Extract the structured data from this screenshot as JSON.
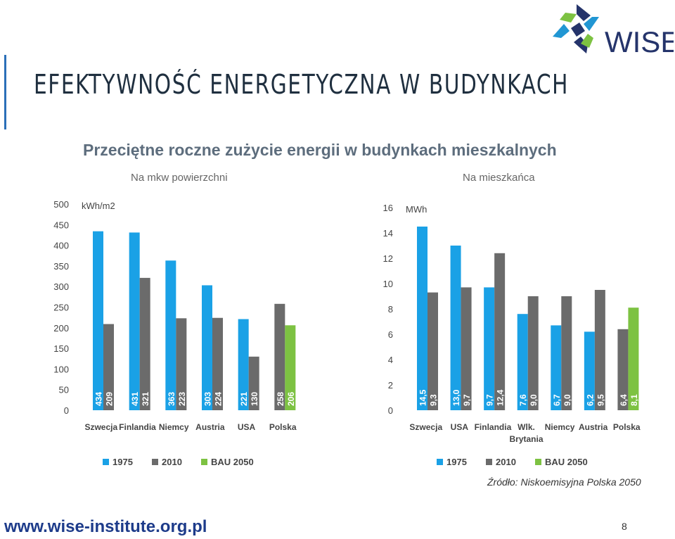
{
  "header": {
    "title": "EFEKTYWNOŚĆ ENERGETYCZNA W BUDYNKACH",
    "logo_text": "WISE"
  },
  "subtitle": "Przeciętne roczne zużycie energii w budynkach mieszkalnych",
  "colors": {
    "s1975": "#1aa1e6",
    "s2010": "#6b6b6b",
    "sBAU": "#7dc242",
    "title": "#1f2f3f",
    "subtitle": "#5d6d7d",
    "url": "#1d3b8a"
  },
  "chart_data": [
    {
      "type": "bar",
      "panel_title": "Na mkw powierzchni",
      "unit": "kWh/m2",
      "ylim": [
        0,
        500
      ],
      "yticks": [
        0,
        50,
        100,
        150,
        200,
        250,
        300,
        350,
        400,
        450,
        500
      ],
      "categories": [
        [
          "Szwecja"
        ],
        [
          "Finlandia"
        ],
        [
          "Niemcy"
        ],
        [
          "Austria"
        ],
        [
          "USA"
        ],
        [
          "Polska"
        ]
      ],
      "series": [
        {
          "name": "1975",
          "values": [
            434,
            431,
            363,
            303,
            221,
            null
          ],
          "labels": [
            "434",
            "431",
            "363",
            "303",
            "221",
            null
          ]
        },
        {
          "name": "2010",
          "values": [
            209,
            321,
            223,
            224,
            130,
            258
          ],
          "labels": [
            "209",
            "321",
            "223",
            "224",
            "130",
            "258"
          ]
        },
        {
          "name": "BAU 2050",
          "values": [
            null,
            null,
            null,
            null,
            null,
            206
          ],
          "labels": [
            null,
            null,
            null,
            null,
            null,
            "206"
          ]
        }
      ],
      "grid": false,
      "legend_position": "bottom"
    },
    {
      "type": "bar",
      "panel_title": "Na mieszkańca",
      "unit": "MWh",
      "ylim": [
        0,
        16
      ],
      "yticks": [
        0,
        2,
        4,
        6,
        8,
        10,
        12,
        14,
        16
      ],
      "categories": [
        [
          "Szwecja"
        ],
        [
          "USA"
        ],
        [
          "Finlandia"
        ],
        [
          "Wlk.",
          "Brytania"
        ],
        [
          "Niemcy"
        ],
        [
          "Austria"
        ],
        [
          "Polska"
        ]
      ],
      "series": [
        {
          "name": "1975",
          "values": [
            14.5,
            13.0,
            9.7,
            7.6,
            6.7,
            6.2,
            null
          ],
          "labels": [
            "14,5",
            "13,0",
            "9,7",
            "7,6",
            "6,7",
            "6,2",
            null
          ]
        },
        {
          "name": "2010",
          "values": [
            9.3,
            9.7,
            12.4,
            9.0,
            9.0,
            9.5,
            6.4
          ],
          "labels": [
            "9,3",
            "9,7",
            "12,4",
            "9,0",
            "9,0",
            "9,5",
            "6,4"
          ]
        },
        {
          "name": "BAU 2050",
          "values": [
            null,
            null,
            null,
            null,
            null,
            null,
            8.1
          ],
          "labels": [
            null,
            null,
            null,
            null,
            null,
            null,
            "8,1"
          ]
        }
      ],
      "grid": false,
      "legend_position": "bottom"
    }
  ],
  "footer": {
    "source": "Źródło: Niskoemisyjna Polska 2050",
    "url": "www.wise-institute.org.pl",
    "page_number": "8"
  }
}
